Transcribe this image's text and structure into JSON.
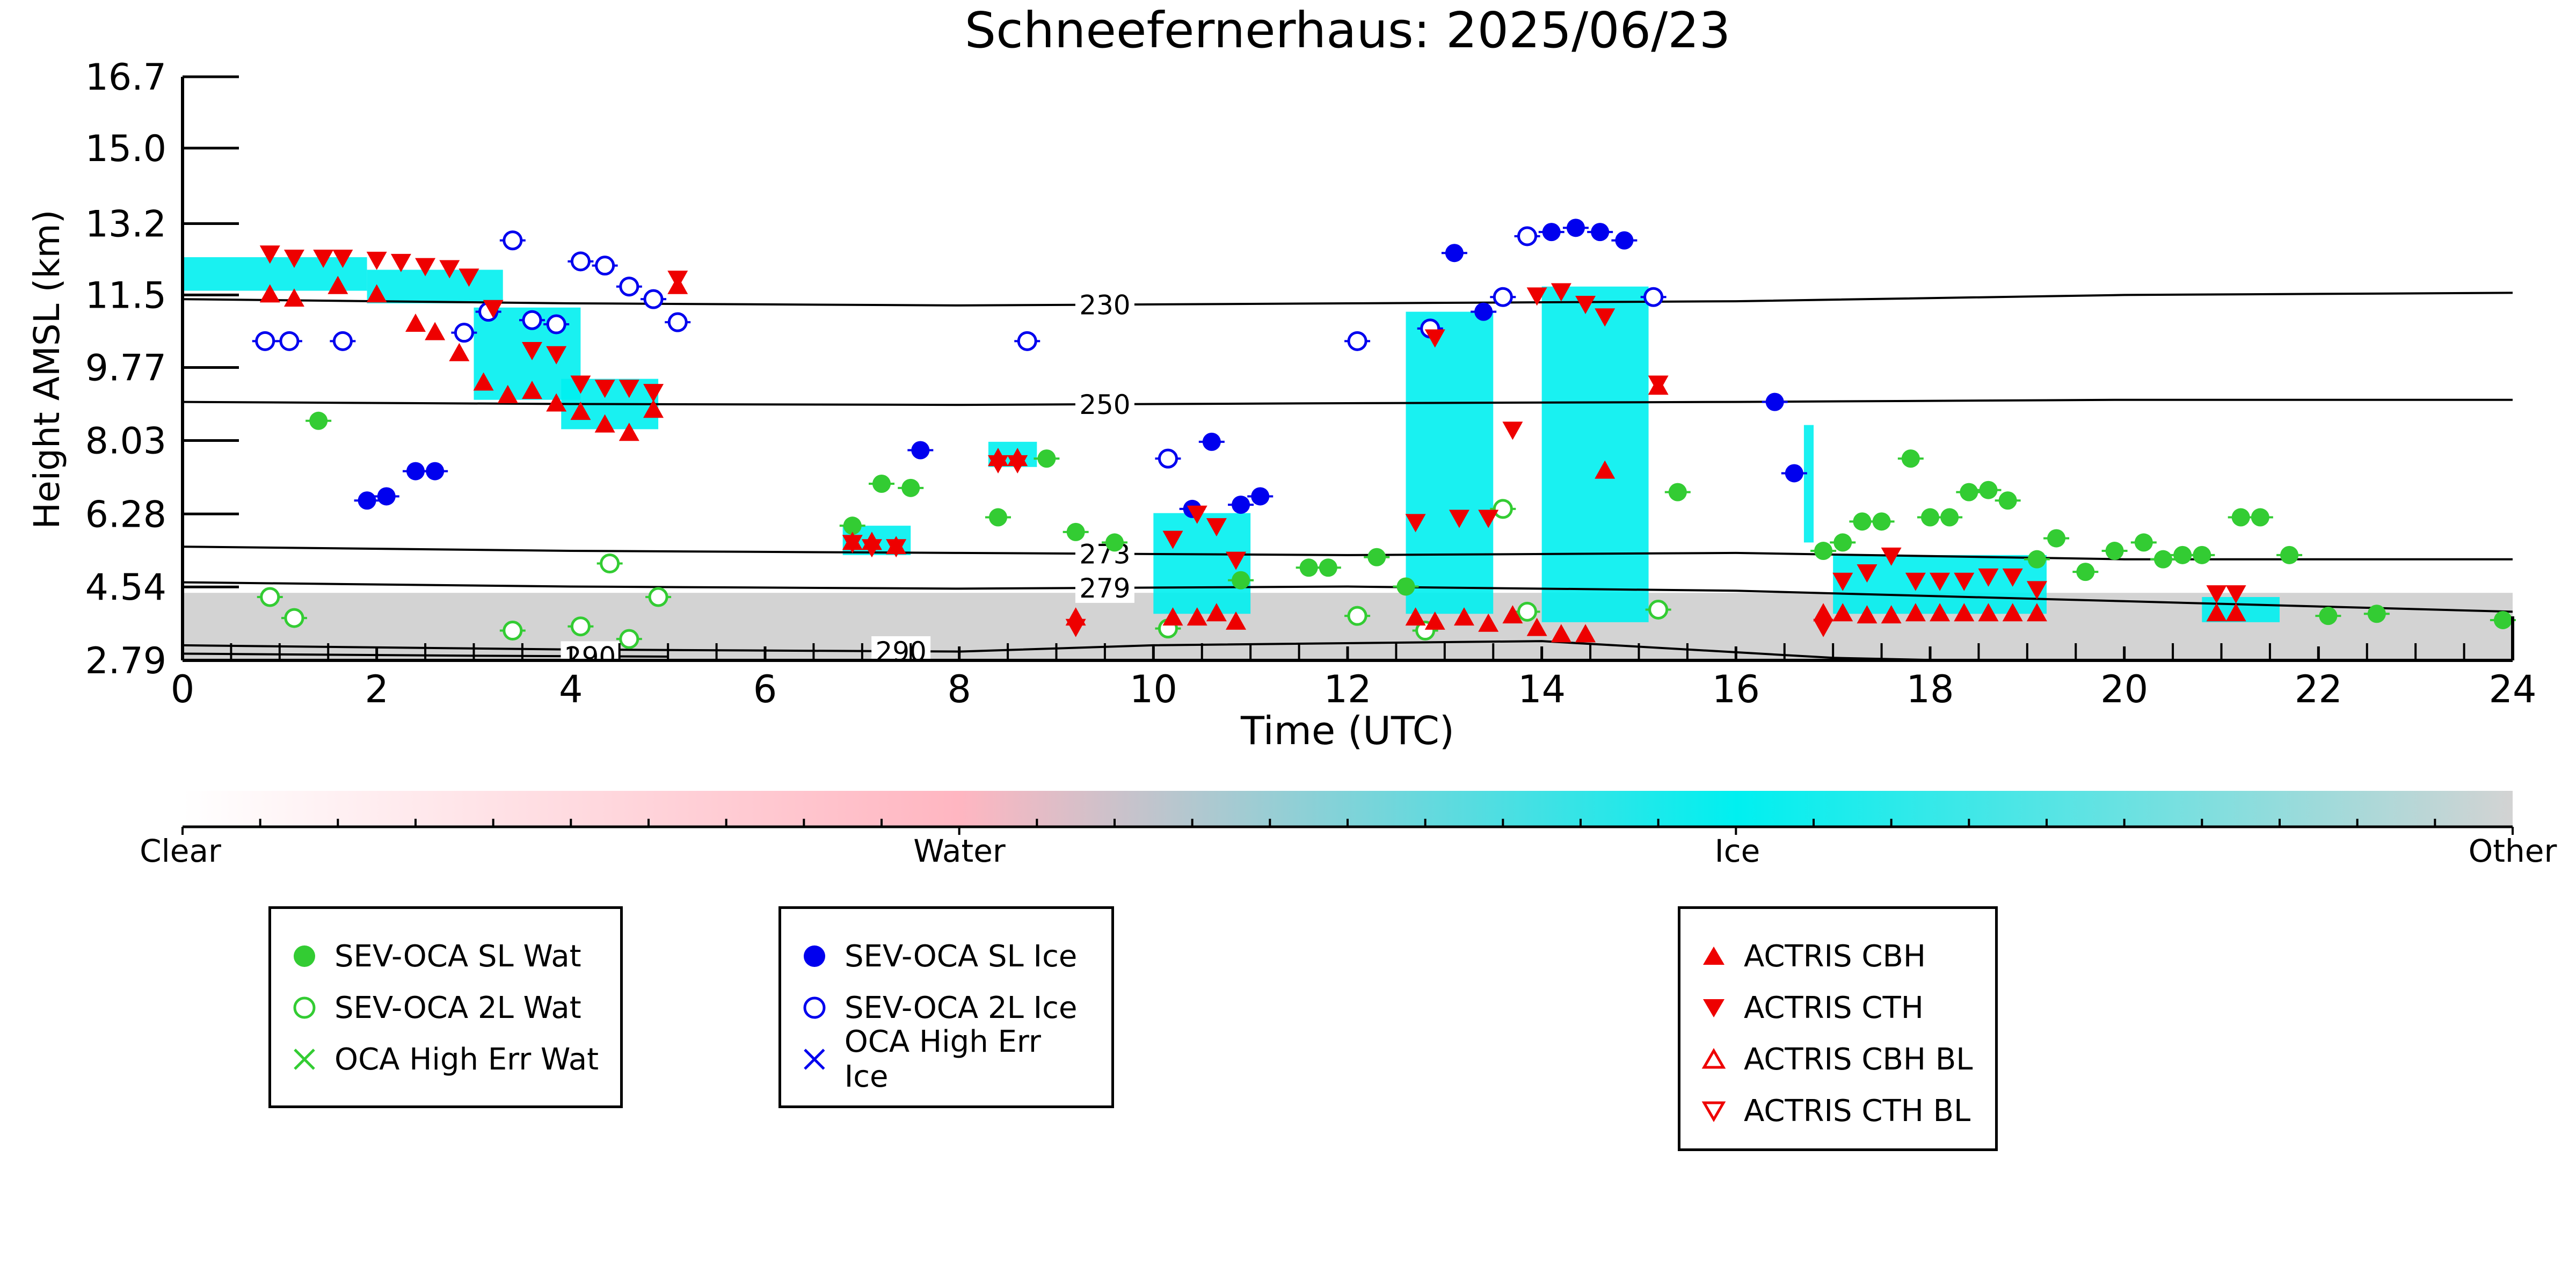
{
  "chart_data": {
    "type": "scatter",
    "title": "Schneefernerhaus: 2025/06/23",
    "xlabel": "Time (UTC)",
    "ylabel": "Height AMSL (km)",
    "xlim": [
      0,
      24
    ],
    "ylim": [
      2.79,
      16.7
    ],
    "x_ticks": [
      0,
      2,
      4,
      6,
      8,
      10,
      12,
      14,
      16,
      18,
      20,
      22,
      24
    ],
    "y_ticks": [
      2.79,
      4.54,
      6.28,
      8.03,
      9.77,
      11.5,
      13.2,
      15.0,
      16.7
    ],
    "y_tick_labels": [
      "2.79",
      "4.54",
      "6.28",
      "8.03",
      "9.77",
      "11.5",
      "13.2",
      "15.0",
      "16.7"
    ],
    "colorbar": {
      "labels": [
        "Clear",
        "Water",
        "Ice",
        "Other"
      ],
      "colors": [
        "#ffffff",
        "#ffb6c1",
        "#00f0f0",
        "#d3d3d3"
      ]
    },
    "isotherms": [
      {
        "label": "230",
        "label_x": 9.5,
        "x": [
          0,
          4,
          8,
          12,
          16,
          20,
          24
        ],
        "y": [
          11.4,
          11.3,
          11.25,
          11.3,
          11.35,
          11.5,
          11.55
        ]
      },
      {
        "label": "250",
        "label_x": 9.5,
        "x": [
          0,
          4,
          8,
          12,
          16,
          20,
          24
        ],
        "y": [
          8.95,
          8.9,
          8.88,
          8.92,
          8.95,
          9.0,
          9.0
        ]
      },
      {
        "label": "273",
        "label_x": 9.5,
        "x": [
          0,
          4,
          8,
          12,
          16,
          20,
          24
        ],
        "y": [
          5.5,
          5.4,
          5.35,
          5.3,
          5.35,
          5.2,
          5.2
        ]
      },
      {
        "label": "279",
        "label_x": 9.5,
        "x": [
          0,
          4,
          8,
          12,
          16,
          20,
          24
        ],
        "y": [
          4.65,
          4.55,
          4.5,
          4.55,
          4.45,
          4.2,
          3.95
        ]
      },
      {
        "label": "290",
        "label_x": 7.4,
        "x": [
          0,
          4,
          8,
          10,
          14,
          17,
          20,
          24
        ],
        "y": [
          3.15,
          3.05,
          3.0,
          3.15,
          3.25,
          2.85,
          2.7,
          2.6
        ]
      },
      {
        "label": "290",
        "label_x": 4.2,
        "x": [
          0,
          3,
          5
        ],
        "y": [
          2.95,
          2.9,
          2.88
        ]
      }
    ],
    "series": [
      {
        "name": "SEV-OCA SL Wat",
        "marker": "filled-circle",
        "color": "#33cc33",
        "x": [
          1.4,
          6.9,
          7.2,
          7.5,
          8.4,
          8.9,
          9.2,
          9.6,
          10.9,
          11.6,
          11.8,
          12.3,
          12.6,
          15.4,
          16.9,
          17.1,
          17.3,
          17.5,
          17.8,
          18.0,
          18.2,
          18.4,
          18.6,
          18.8,
          19.1,
          19.3,
          19.6,
          19.9,
          20.2,
          20.4,
          20.6,
          20.8,
          21.2,
          21.4,
          21.7,
          22.1,
          22.6,
          23.9
        ],
        "y": [
          8.5,
          6.0,
          7.0,
          6.9,
          6.2,
          7.6,
          5.85,
          5.6,
          4.7,
          5.0,
          5.0,
          5.25,
          4.55,
          6.8,
          5.4,
          5.6,
          6.1,
          6.1,
          7.6,
          6.2,
          6.2,
          6.8,
          6.85,
          6.6,
          5.2,
          5.7,
          4.9,
          5.4,
          5.6,
          5.2,
          5.3,
          5.3,
          6.2,
          6.2,
          5.3,
          3.85,
          3.9,
          3.75
        ]
      },
      {
        "name": "SEV-OCA 2L Wat",
        "marker": "open-circle",
        "color": "#33cc33",
        "x": [
          0.9,
          1.15,
          3.4,
          4.1,
          4.4,
          4.6,
          4.9,
          10.15,
          12.1,
          12.8,
          13.6,
          13.85,
          15.2
        ],
        "y": [
          4.3,
          3.8,
          3.5,
          3.6,
          5.1,
          3.3,
          4.3,
          3.55,
          3.85,
          3.5,
          6.4,
          3.95,
          4.0
        ]
      },
      {
        "name": "SEV-OCA SL Ice",
        "marker": "filled-circle",
        "color": "#0000ee",
        "x": [
          1.9,
          2.1,
          2.4,
          2.6,
          7.6,
          10.4,
          10.6,
          10.9,
          11.1,
          13.1,
          13.4,
          14.1,
          14.35,
          14.6,
          14.85,
          16.4,
          16.6
        ],
        "y": [
          6.6,
          6.7,
          7.3,
          7.3,
          7.8,
          6.4,
          8.0,
          6.5,
          6.7,
          12.5,
          11.1,
          13.0,
          13.1,
          13.0,
          12.8,
          8.95,
          7.25
        ]
      },
      {
        "name": "SEV-OCA 2L Ice",
        "marker": "open-circle",
        "color": "#0000ee",
        "x": [
          0.85,
          1.1,
          1.65,
          2.9,
          3.15,
          3.4,
          3.6,
          3.85,
          4.1,
          4.35,
          4.6,
          4.85,
          5.1,
          8.7,
          10.15,
          12.1,
          12.85,
          13.6,
          13.85,
          15.15
        ],
        "y": [
          10.4,
          10.4,
          10.4,
          10.6,
          11.1,
          12.8,
          10.9,
          10.8,
          12.3,
          12.2,
          11.7,
          11.4,
          10.85,
          10.4,
          7.6,
          10.4,
          10.7,
          11.45,
          12.9,
          11.45
        ]
      },
      {
        "name": "OCA High Err Wat",
        "marker": "x",
        "color": "#33cc33",
        "x": [],
        "y": []
      },
      {
        "name": "OCA High Err Ice",
        "marker": "x",
        "color": "#0000ee",
        "x": [],
        "y": []
      },
      {
        "name": "ACTRIS CBH",
        "marker": "filled-triangle-up",
        "color": "#ee0000",
        "x": [
          0.9,
          1.15,
          1.6,
          2.0,
          2.4,
          2.6,
          2.85,
          3.1,
          3.35,
          3.6,
          3.85,
          4.1,
          4.35,
          4.6,
          4.85,
          5.1,
          6.9,
          7.1,
          7.35,
          8.4,
          8.6,
          9.2,
          10.2,
          10.45,
          10.65,
          10.85,
          12.7,
          12.9,
          13.2,
          13.45,
          13.7,
          13.95,
          14.2,
          14.45,
          14.65,
          15.2,
          16.9,
          17.1,
          17.35,
          17.6,
          17.85,
          18.1,
          18.35,
          18.6,
          18.85,
          19.1,
          20.95,
          21.15
        ],
        "y": [
          11.5,
          11.4,
          11.7,
          11.5,
          10.8,
          10.6,
          10.1,
          9.4,
          9.1,
          9.2,
          8.9,
          8.7,
          8.4,
          8.2,
          8.75,
          11.7,
          5.6,
          5.6,
          5.5,
          7.6,
          7.6,
          3.8,
          3.8,
          3.8,
          3.9,
          3.7,
          3.8,
          3.7,
          3.8,
          3.65,
          3.85,
          3.55,
          3.4,
          3.4,
          7.3,
          9.3,
          3.9,
          3.9,
          3.85,
          3.85,
          3.9,
          3.9,
          3.9,
          3.9,
          3.9,
          3.9,
          3.9,
          3.9
        ]
      },
      {
        "name": "ACTRIS CTH",
        "marker": "filled-triangle-down",
        "color": "#ee0000",
        "x": [
          0.9,
          1.15,
          1.45,
          1.65,
          2.0,
          2.25,
          2.5,
          2.75,
          2.95,
          3.2,
          3.6,
          3.85,
          4.1,
          4.35,
          4.6,
          4.85,
          5.1,
          6.9,
          7.1,
          7.35,
          8.4,
          8.6,
          9.2,
          10.2,
          10.45,
          10.65,
          10.85,
          12.7,
          12.9,
          13.15,
          13.45,
          13.7,
          13.95,
          14.2,
          14.45,
          14.65,
          15.2,
          16.9,
          17.1,
          17.35,
          17.6,
          17.85,
          18.1,
          18.35,
          18.6,
          18.85,
          19.1,
          20.95,
          21.15
        ],
        "y": [
          12.5,
          12.4,
          12.4,
          12.4,
          12.35,
          12.3,
          12.2,
          12.15,
          11.95,
          11.2,
          10.2,
          10.1,
          9.4,
          9.3,
          9.3,
          9.2,
          11.9,
          5.6,
          5.5,
          5.5,
          7.5,
          7.5,
          3.6,
          5.7,
          6.3,
          6.0,
          5.2,
          6.1,
          10.5,
          6.2,
          6.2,
          8.3,
          11.5,
          11.6,
          11.3,
          11.0,
          9.4,
          3.6,
          4.7,
          4.9,
          5.3,
          4.7,
          4.7,
          4.7,
          4.8,
          4.8,
          4.5,
          4.4,
          4.4
        ]
      },
      {
        "name": "ACTRIS CBH BL",
        "marker": "open-triangle-up",
        "color": "#ee0000",
        "x": [],
        "y": []
      },
      {
        "name": "ACTRIS CTH BL",
        "marker": "open-triangle-down",
        "color": "#ee0000",
        "x": [],
        "y": []
      }
    ],
    "ice_regions": [
      {
        "x0": 0.0,
        "x1": 1.9,
        "y0": 11.6,
        "y1": 12.4
      },
      {
        "x0": 1.9,
        "x1": 3.3,
        "y0": 11.3,
        "y1": 12.1
      },
      {
        "x0": 3.0,
        "x1": 4.1,
        "y0": 9.0,
        "y1": 11.2
      },
      {
        "x0": 3.9,
        "x1": 4.9,
        "y0": 8.3,
        "y1": 9.5
      },
      {
        "x0": 6.8,
        "x1": 7.5,
        "y0": 5.3,
        "y1": 6.0
      },
      {
        "x0": 8.3,
        "x1": 8.8,
        "y0": 7.4,
        "y1": 8.0
      },
      {
        "x0": 10.0,
        "x1": 11.0,
        "y0": 3.9,
        "y1": 6.3
      },
      {
        "x0": 12.6,
        "x1": 13.5,
        "y0": 3.9,
        "y1": 11.1
      },
      {
        "x0": 14.0,
        "x1": 15.1,
        "y0": 3.7,
        "y1": 11.7
      },
      {
        "x0": 16.7,
        "x1": 16.8,
        "y0": 5.6,
        "y1": 8.4
      },
      {
        "x0": 17.0,
        "x1": 19.2,
        "y0": 3.9,
        "y1": 5.3
      },
      {
        "x0": 20.8,
        "x1": 21.6,
        "y0": 3.7,
        "y1": 4.3
      }
    ],
    "other_band": {
      "x0": 0.0,
      "x1": 24.0,
      "y0": 2.79,
      "y1": 4.4
    }
  },
  "legends": [
    {
      "entries": [
        "SEV-OCA SL Wat",
        "SEV-OCA 2L Wat",
        "OCA High Err Wat"
      ]
    },
    {
      "entries": [
        "SEV-OCA SL Ice",
        "SEV-OCA 2L Ice",
        "OCA High Err Ice"
      ]
    },
    {
      "entries": [
        "ACTRIS CBH",
        "ACTRIS CTH",
        "ACTRIS CBH BL",
        "ACTRIS CTH BL"
      ]
    }
  ]
}
